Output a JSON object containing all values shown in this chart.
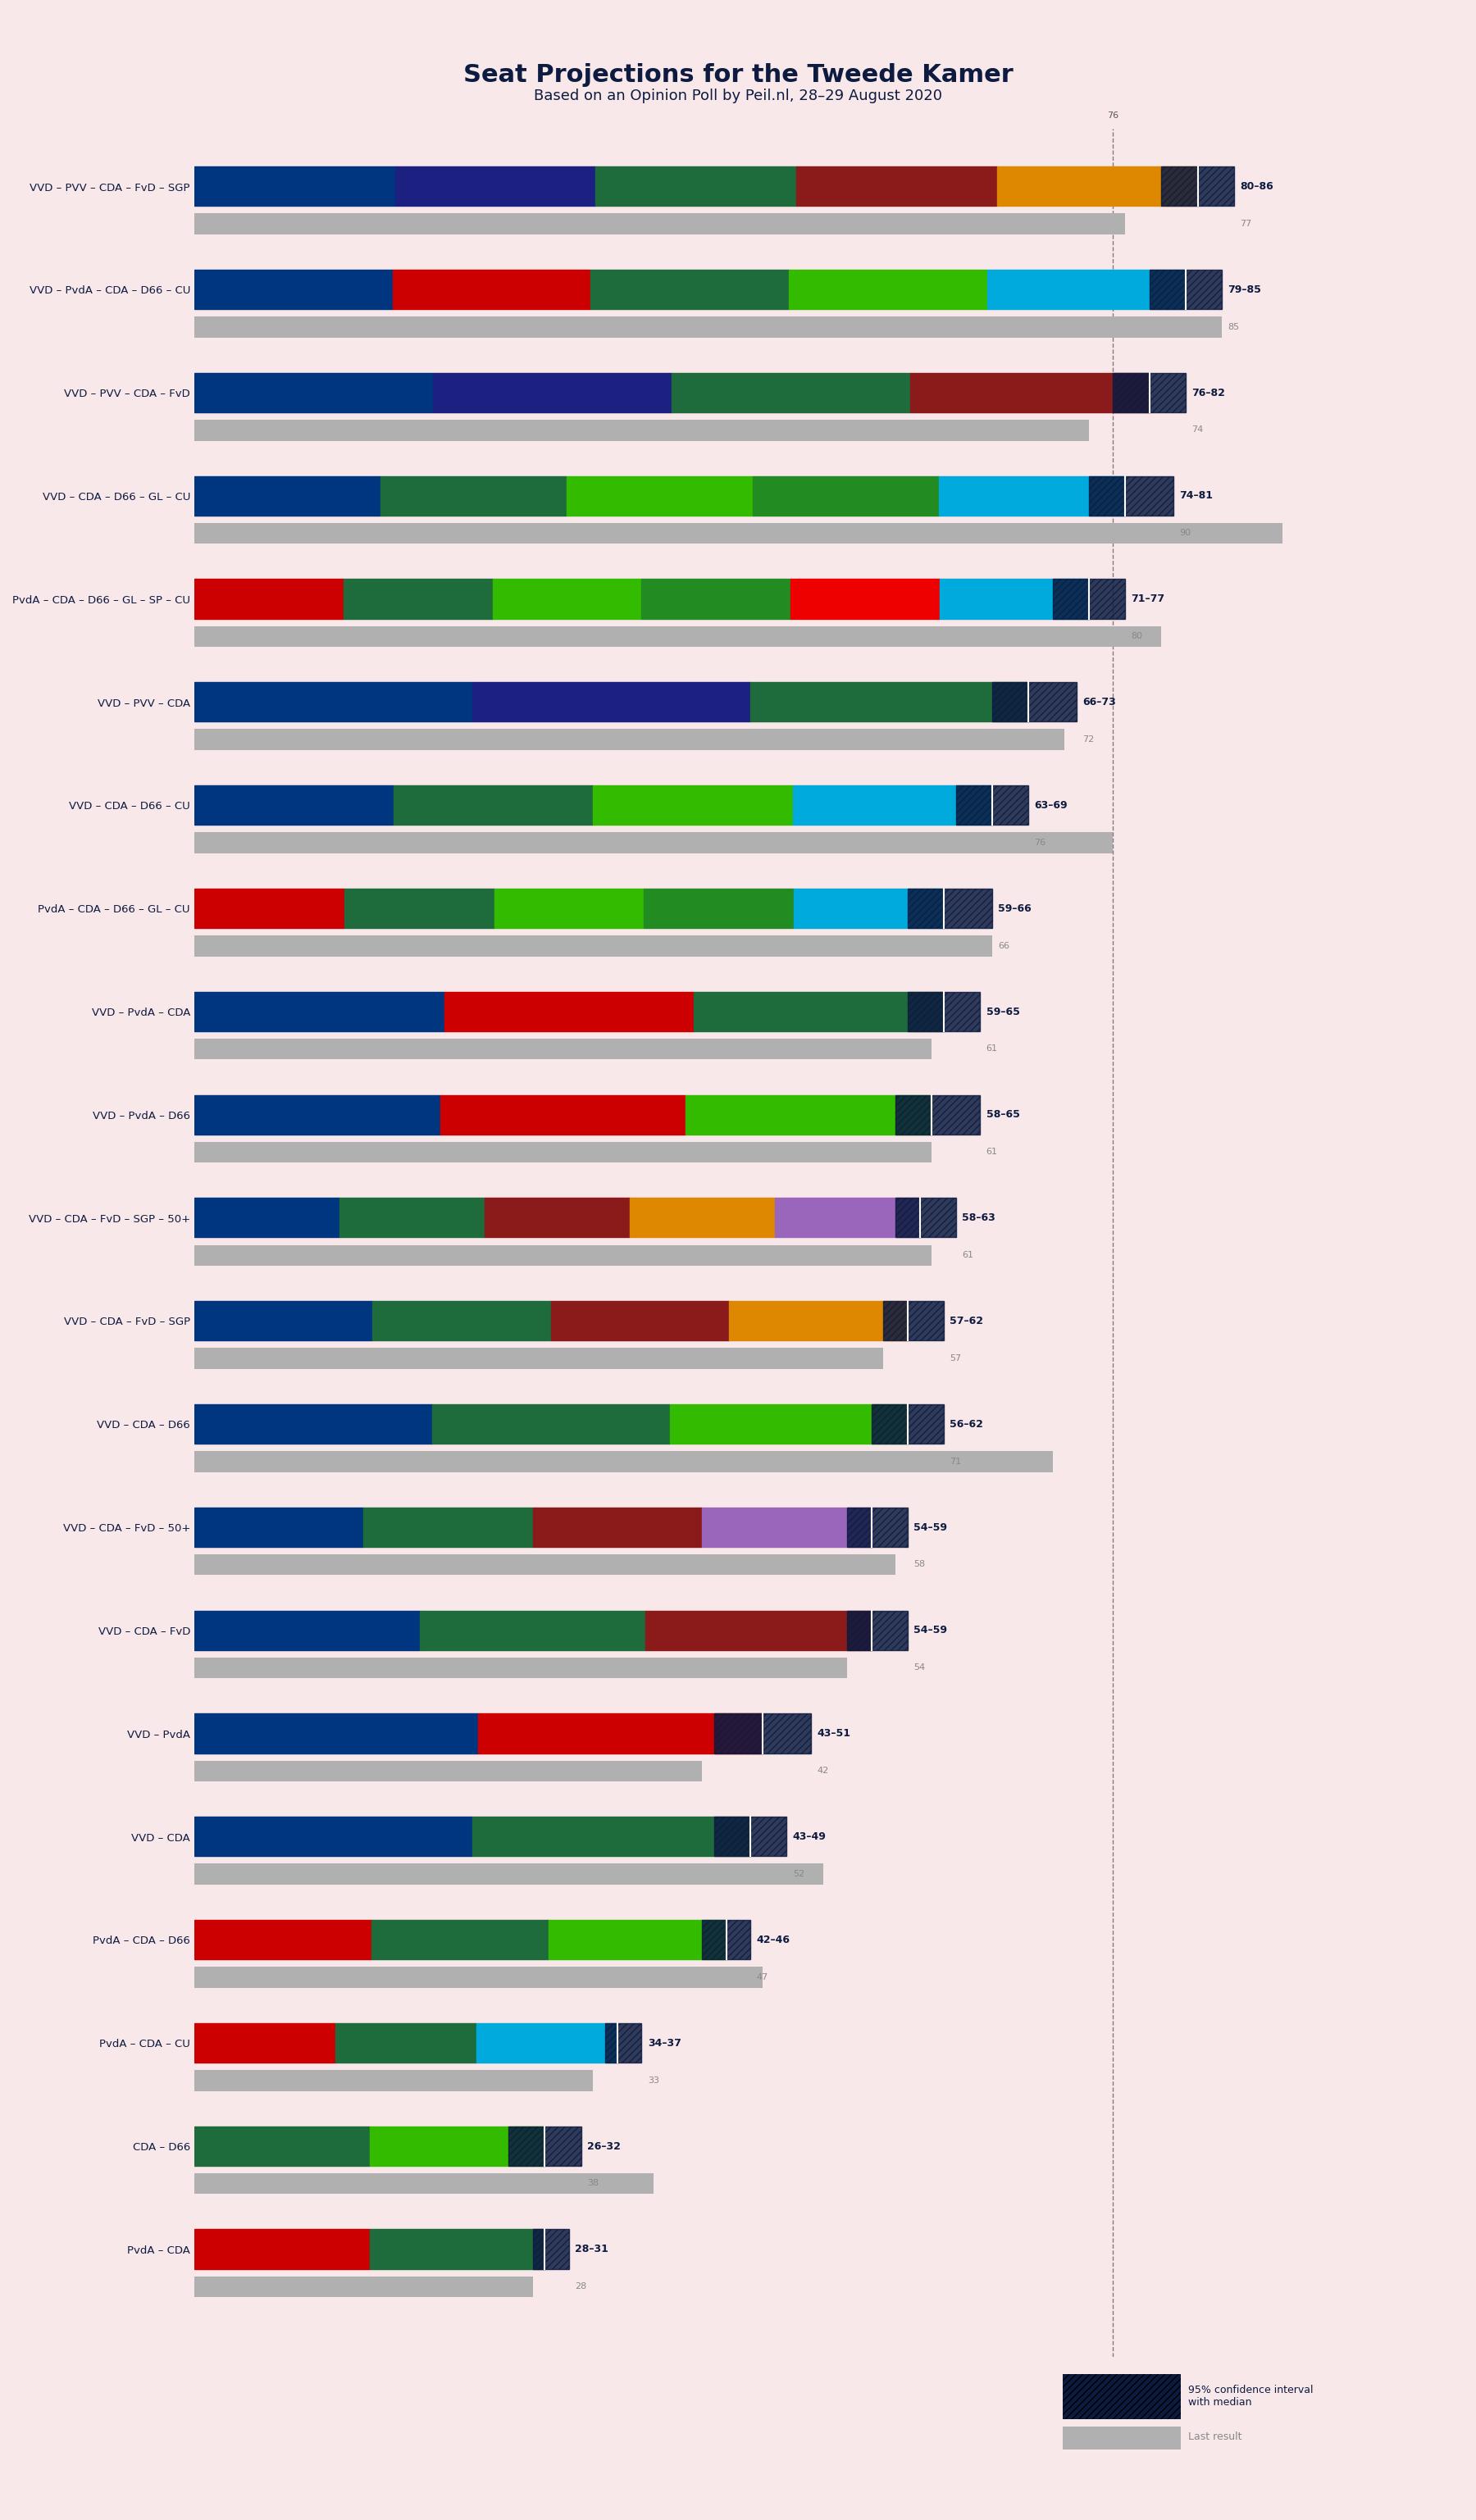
{
  "title": "Seat Projections for the Tweede Kamer",
  "subtitle": "Based on an Opinion Poll by Peil.nl, 28–29 August 2020",
  "background_color": "#f9e8ea",
  "bar_background": "#e8d8da",
  "title_color": "#0d1b40",
  "subtitle_color": "#0d1b40",
  "coalitions": [
    {
      "name": "VVD – PVV – CDA – FvD – SGP",
      "low": 80,
      "high": 86,
      "median": 83,
      "last": 77
    },
    {
      "name": "VVD – PvdA – CDA – D66 – CU",
      "low": 79,
      "high": 85,
      "median": 82,
      "last": 85
    },
    {
      "name": "VVD – PVV – CDA – FvD",
      "low": 76,
      "high": 82,
      "median": 79,
      "last": 74
    },
    {
      "name": "VVD – CDA – D66 – GL – CU",
      "low": 74,
      "high": 81,
      "median": 77,
      "last": 90
    },
    {
      "name": "PvdA – CDA – D66 – GL – SP – CU",
      "low": 71,
      "high": 77,
      "median": 74,
      "last": 80
    },
    {
      "name": "VVD – PVV – CDA",
      "low": 66,
      "high": 73,
      "median": 69,
      "last": 72
    },
    {
      "name": "VVD – CDA – D66 – CU",
      "low": 63,
      "high": 69,
      "median": 66,
      "last": 76,
      "underline": true
    },
    {
      "name": "PvdA – CDA – D66 – GL – CU",
      "low": 59,
      "high": 66,
      "median": 62,
      "last": 66
    },
    {
      "name": "VVD – PvdA – CDA",
      "low": 59,
      "high": 65,
      "median": 62,
      "last": 61
    },
    {
      "name": "VVD – PvdA – D66",
      "low": 58,
      "high": 65,
      "median": 61,
      "last": 61
    },
    {
      "name": "VVD – CDA – FvD – SGP – 50+",
      "low": 58,
      "high": 63,
      "median": 60,
      "last": 61
    },
    {
      "name": "VVD – CDA – FvD – SGP",
      "low": 57,
      "high": 62,
      "median": 59,
      "last": 57
    },
    {
      "name": "VVD – CDA – D66",
      "low": 56,
      "high": 62,
      "median": 59,
      "last": 71
    },
    {
      "name": "VVD – CDA – FvD – 50+",
      "low": 54,
      "high": 59,
      "median": 56,
      "last": 58
    },
    {
      "name": "VVD – CDA – FvD",
      "low": 54,
      "high": 59,
      "median": 56,
      "last": 54
    },
    {
      "name": "VVD – PvdA",
      "low": 43,
      "high": 51,
      "median": 47,
      "last": 42
    },
    {
      "name": "VVD – CDA",
      "low": 43,
      "high": 49,
      "median": 46,
      "last": 52
    },
    {
      "name": "PvdA – CDA – D66",
      "low": 42,
      "high": 46,
      "median": 44,
      "last": 47
    },
    {
      "name": "PvdA – CDA – CU",
      "low": 34,
      "high": 37,
      "median": 35,
      "last": 33
    },
    {
      "name": "CDA – D66",
      "low": 26,
      "high": 32,
      "median": 29,
      "last": 38
    },
    {
      "name": "PvdA – CDA",
      "low": 28,
      "high": 31,
      "median": 29,
      "last": 28
    }
  ],
  "party_colors": {
    "VVD": "#003580",
    "PVV": "#003580",
    "CDA": "#006442",
    "FvD": "#8b0000",
    "SGP": "#ff8c00",
    "PvdA": "#cc0000",
    "D66": "#009900",
    "GL": "#00aa00",
    "CU": "#00bfff",
    "SP": "#ff0000",
    "50+": "#9370db"
  },
  "majority_line": 76,
  "xlim": [
    0,
    100
  ],
  "legend_box_color": "#1a1a2e",
  "legend_hatch_color": "#666666"
}
